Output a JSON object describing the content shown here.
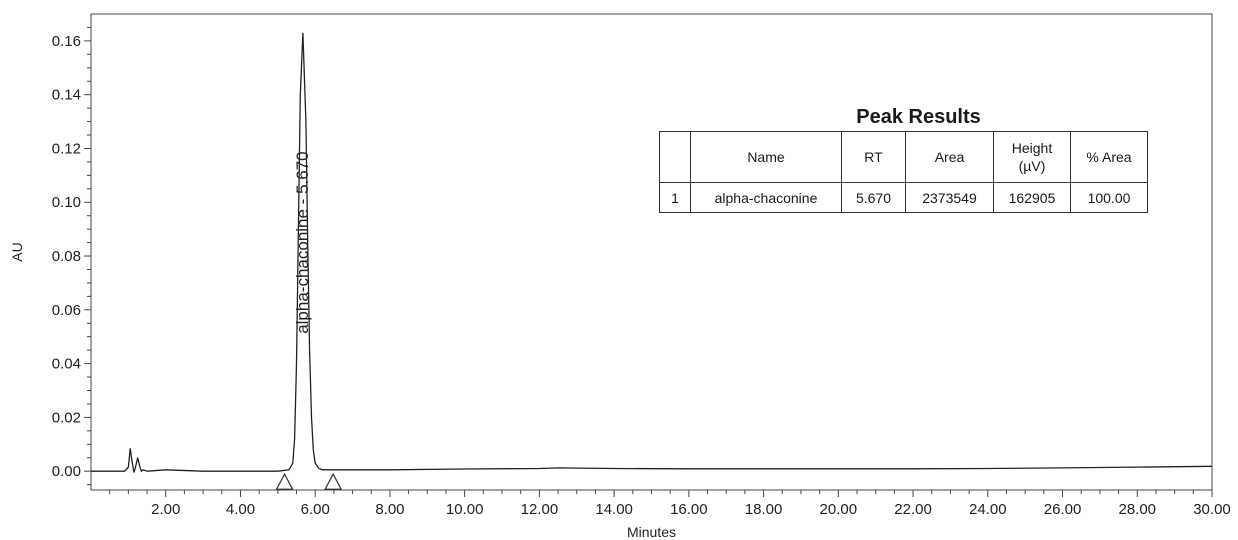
{
  "chart_data": {
    "type": "line",
    "xlabel": "Minutes",
    "ylabel": "AU",
    "xlim": [
      0.0,
      30.0
    ],
    "ylim": [
      -0.007,
      0.17
    ],
    "x_ticks": [
      2.0,
      4.0,
      6.0,
      8.0,
      10.0,
      12.0,
      14.0,
      16.0,
      18.0,
      20.0,
      22.0,
      24.0,
      26.0,
      28.0,
      30.0
    ],
    "x_tick_labels": [
      "2.00",
      "4.00",
      "6.00",
      "8.00",
      "10.00",
      "12.00",
      "14.00",
      "16.00",
      "18.00",
      "20.00",
      "22.00",
      "24.00",
      "26.00",
      "28.00",
      "30.00"
    ],
    "y_ticks": [
      0.0,
      0.02,
      0.04,
      0.06,
      0.08,
      0.1,
      0.12,
      0.14,
      0.16
    ],
    "y_tick_labels": [
      "0.00",
      "0.02",
      "0.04",
      "0.06",
      "0.08",
      "0.10",
      "0.12",
      "0.14",
      "0.16"
    ],
    "series": [
      {
        "x": [
          0.0,
          0.9,
          1.0,
          1.05,
          1.1,
          1.15,
          1.2,
          1.25,
          1.3,
          1.35,
          1.4,
          1.5,
          2.0,
          3.0,
          4.0,
          5.0,
          5.3,
          5.4,
          5.45,
          5.5,
          5.55,
          5.6,
          5.67,
          5.75,
          5.8,
          5.85,
          5.9,
          5.95,
          6.0,
          6.1,
          6.2,
          6.5,
          7.0,
          8.0,
          10.0,
          12.0,
          12.5,
          14.0,
          16.0,
          18.0,
          20.0,
          22.0,
          24.0,
          26.0,
          28.0,
          30.0
        ],
        "y": [
          0.0,
          0.0,
          0.0015,
          0.0085,
          0.0035,
          -0.0005,
          0.002,
          0.005,
          0.002,
          0.0,
          0.0005,
          0.0,
          0.0005,
          0.0,
          0.0,
          0.0,
          0.0005,
          0.003,
          0.012,
          0.04,
          0.09,
          0.14,
          0.163,
          0.13,
          0.085,
          0.045,
          0.02,
          0.008,
          0.003,
          0.001,
          0.0005,
          0.0005,
          0.0005,
          0.0005,
          0.0008,
          0.001,
          0.0012,
          0.001,
          0.0009,
          0.0009,
          0.0009,
          0.0009,
          0.001,
          0.0012,
          0.0015,
          0.0018
        ]
      }
    ],
    "baseline_markers": [
      {
        "x": 5.18,
        "y": 0.0
      },
      {
        "x": 6.48,
        "y": 0.0
      }
    ],
    "peak_annotations": [
      {
        "x": 5.67,
        "y": 0.163,
        "label": "alpha-chaconine - 5.670"
      }
    ]
  },
  "peak_results": {
    "title": "Peak Results",
    "headers": {
      "name": "Name",
      "rt": "RT",
      "area": "Area",
      "height_line1": "Height",
      "height_line2": "(µV)",
      "percent_area": "% Area"
    },
    "rows": [
      {
        "index": "1",
        "name": "alpha-chaconine",
        "rt": "5.670",
        "area": "2373549",
        "height": "162905",
        "percent_area": "100.00"
      }
    ]
  }
}
